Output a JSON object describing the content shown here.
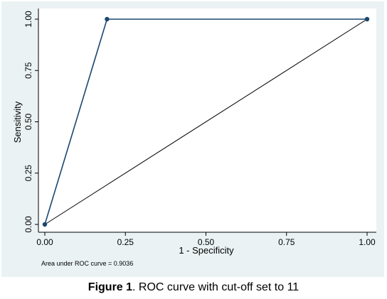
{
  "colors": {
    "panel_bg": "#eaf2f3",
    "plot_bg": "#ffffff",
    "line": "#1a476f",
    "marker": "#1a476f",
    "ref_line": "#000000"
  },
  "caption": {
    "label": "Figure 1",
    "text": ". ROC curve with cut-off set to 11"
  },
  "chart_data": {
    "type": "line",
    "xlabel": "1 - Specificity",
    "ylabel": "Sensitivity",
    "xlim": [
      0,
      1
    ],
    "ylim": [
      0,
      1
    ],
    "x_ticks": [
      0,
      0.25,
      0.5,
      0.75,
      1
    ],
    "x_tick_labels": [
      "0.00",
      "0.25",
      "0.50",
      "0.75",
      "1.00"
    ],
    "y_ticks": [
      0,
      0.25,
      0.5,
      0.75,
      1
    ],
    "y_tick_labels": [
      "0.00",
      "0.25",
      "0.50",
      "0.75",
      "1.00"
    ],
    "grid": false,
    "reference_line": true,
    "annotation": "Area under ROC curve = 0.9036",
    "series": [
      {
        "x": [
          0,
          0.193,
          1
        ],
        "y": [
          0,
          1,
          1
        ]
      }
    ]
  }
}
